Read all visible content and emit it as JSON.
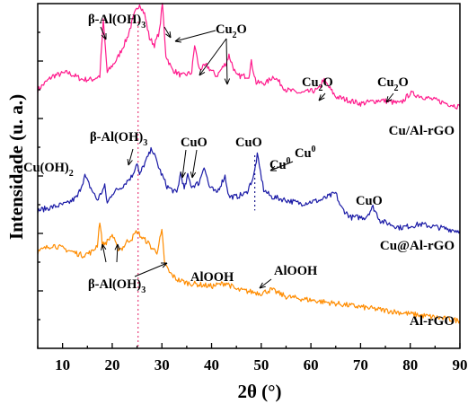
{
  "chart_data": {
    "type": "line",
    "title": "",
    "xlabel": "2θ (°)",
    "ylabel": "Intensidade (u. a.)",
    "xlim": [
      5,
      90
    ],
    "xticks": [
      10,
      20,
      30,
      40,
      50,
      60,
      70,
      80,
      90
    ],
    "y_ticks_labeled": false,
    "grid": false,
    "legend": "none",
    "reference_lines": [
      {
        "x": 25.2,
        "style": "dotted",
        "color": "#e8407a"
      },
      {
        "x": 48.7,
        "style": "dotted",
        "color": "#1a1a8e"
      }
    ],
    "series": [
      {
        "name": "Cu/Al-rGO",
        "color": "#ff1a8c",
        "x": [
          5,
          8,
          11,
          14,
          16,
          17.5,
          18.2,
          19,
          21,
          23,
          24.5,
          25.5,
          26.5,
          27.5,
          28.5,
          29.5,
          30.1,
          30.8,
          32,
          34,
          36,
          36.6,
          37.5,
          39,
          41,
          43,
          43.5,
          45,
          47.5,
          48,
          49,
          51,
          52.5,
          55,
          58,
          61.5,
          62.5,
          65,
          70,
          74,
          78,
          80,
          85,
          90
        ],
        "y": [
          75,
          79,
          80,
          78,
          78,
          79,
          95,
          80,
          84,
          90,
          97,
          100,
          97,
          90,
          88,
          92,
          100,
          85,
          81,
          79,
          80,
          88,
          81,
          82,
          79,
          83,
          85,
          79,
          79,
          83,
          77,
          77,
          79,
          75,
          74,
          75,
          78,
          73,
          71,
          72,
          71,
          74,
          72,
          70
        ]
      },
      {
        "name": "Cu@Al-rGO",
        "color": "#1a1aa6",
        "x": [
          5,
          8,
          11,
          13,
          14.5,
          15.5,
          17,
          18.5,
          19,
          20,
          22,
          24,
          25,
          25.5,
          26,
          27,
          28,
          28.5,
          29.5,
          31,
          33,
          33.8,
          34.5,
          35.2,
          36,
          37.5,
          38.5,
          39.5,
          41,
          42.7,
          43.5,
          45,
          47,
          48.5,
          49.2,
          50.5,
          52,
          55,
          58,
          62,
          65,
          66,
          68,
          71,
          72.5,
          74,
          78,
          82,
          86,
          90
        ],
        "y": [
          40,
          41,
          42,
          44,
          50,
          47,
          43,
          47,
          42,
          45,
          47,
          50,
          54,
          50,
          52,
          55,
          58,
          56,
          52,
          47,
          45,
          51,
          46,
          50,
          47,
          48,
          53,
          47,
          45,
          50,
          44,
          44,
          45,
          50,
          56,
          46,
          44,
          43,
          42,
          43,
          45,
          41,
          38,
          38,
          41,
          37,
          35,
          36,
          35,
          34
        ]
      },
      {
        "name": "Al-rGO",
        "color": "#ff8c00",
        "x": [
          5,
          8,
          10,
          12,
          14,
          16,
          17,
          17.5,
          18,
          19,
          20,
          21,
          22,
          23,
          24,
          25,
          26,
          27,
          28,
          29,
          30,
          30.5,
          31.5,
          33,
          35,
          40,
          43,
          45,
          50,
          52,
          55,
          60,
          65,
          70,
          75,
          80,
          85,
          90
        ],
        "y": [
          28,
          30,
          29,
          28,
          27,
          28,
          30,
          37,
          30,
          31,
          33,
          29,
          29,
          31,
          32,
          34,
          32,
          31,
          29,
          28,
          34,
          25,
          22,
          20,
          19,
          18,
          19,
          17,
          16,
          17,
          15,
          14,
          13,
          12,
          11,
          10,
          9,
          8
        ]
      }
    ],
    "series_labels": [
      "Cu/Al-rGO",
      "Cu@Al-rGO",
      "Al-rGO"
    ],
    "annotations": [
      {
        "text": "β-Al(OH)",
        "sub": "3",
        "series": "Cu/Al-rGO"
      },
      {
        "text": "Cu",
        "sub": "2",
        "tail": "O",
        "series": "Cu/Al-rGO"
      },
      {
        "text": "Cu",
        "sub": "2",
        "tail": "O",
        "series": "Cu/Al-rGO"
      },
      {
        "text": "Cu",
        "sub": "2",
        "tail": "O",
        "series": "Cu/Al-rGO"
      },
      {
        "text": "β-Al(OH)",
        "sub": "3",
        "series": "Cu@Al-rGO"
      },
      {
        "text": "Cu(OH)",
        "sub": "2",
        "series": "Cu@Al-rGO"
      },
      {
        "text": "CuO",
        "series": "Cu@Al-rGO"
      },
      {
        "text": "CuO",
        "series": "Cu@Al-rGO"
      },
      {
        "text": "CuO",
        "series": "Cu@Al-rGO"
      },
      {
        "text": "Cu",
        "sup": "0",
        "series": "Cu@Al-rGO"
      },
      {
        "text": "Cu",
        "sup": "0",
        "series": "Cu@Al-rGO"
      },
      {
        "text": "β-Al(OH)",
        "sub": "3",
        "series": "Al-rGO"
      },
      {
        "text": "AlOOH",
        "series": "Al-rGO"
      },
      {
        "text": "AlOOH",
        "series": "Al-rGO"
      }
    ]
  }
}
